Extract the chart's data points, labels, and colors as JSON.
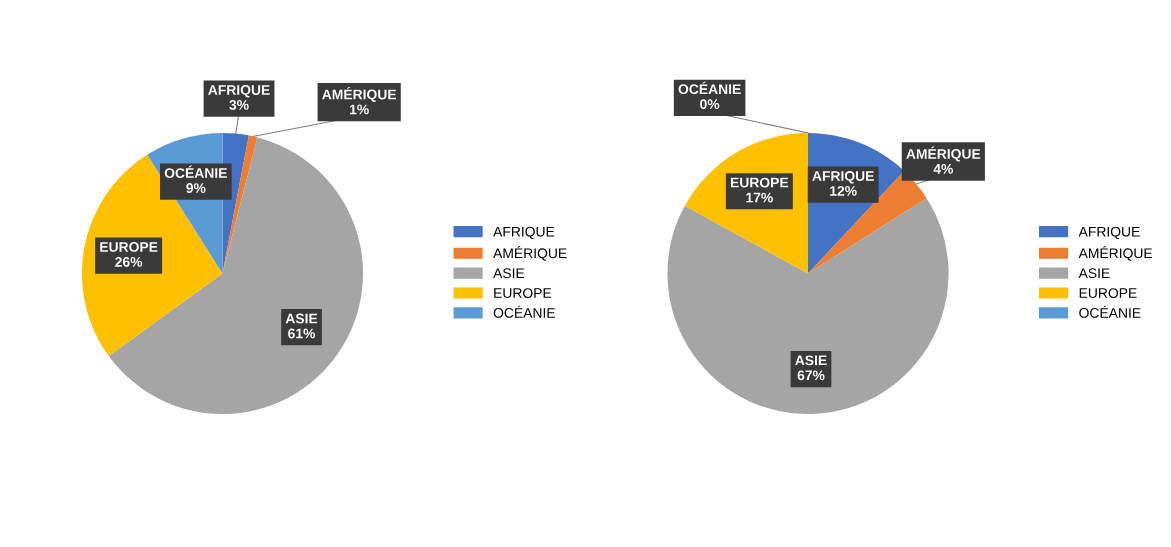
{
  "chart_data": [
    {
      "type": "pie",
      "categories": [
        "AFRIQUE",
        "AMÉRIQUE",
        "ASIE",
        "EUROPE",
        "OCÉANIE"
      ],
      "values": [
        3,
        1,
        61,
        26,
        9
      ],
      "value_labels": [
        "3%",
        "1%",
        "61%",
        "26%",
        "9%"
      ],
      "colors": [
        "#4472c4",
        "#ed7d31",
        "#a5a5a5",
        "#ffc000",
        "#5b9bd5"
      ],
      "legend": "right"
    },
    {
      "type": "pie",
      "categories": [
        "AFRIQUE",
        "AMÉRIQUE",
        "ASIE",
        "EUROPE",
        "OCÉANIE"
      ],
      "values": [
        12,
        4,
        67,
        17,
        0
      ],
      "value_labels": [
        "12%",
        "4%",
        "67%",
        "17%",
        "0%"
      ],
      "colors": [
        "#4472c4",
        "#ed7d31",
        "#a5a5a5",
        "#ffc000",
        "#5b9bd5"
      ],
      "legend": "right"
    }
  ]
}
